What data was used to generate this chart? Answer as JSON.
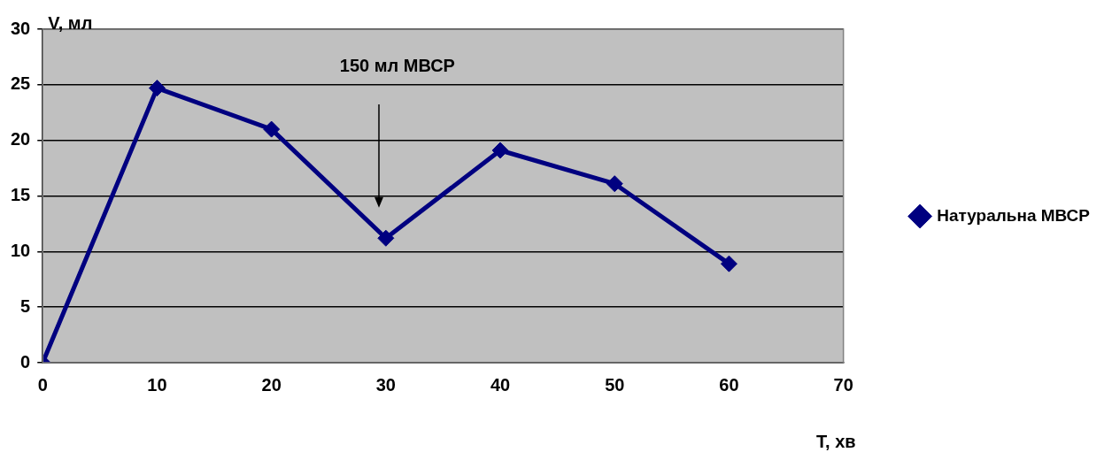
{
  "chart_data": {
    "type": "line",
    "xlabel": "T, хв",
    "ylabel": "V, мл",
    "x": [
      0,
      10,
      20,
      30,
      40,
      50,
      60
    ],
    "series": [
      {
        "name": "Натуральна МВСР",
        "color": "#000080",
        "values": [
          0,
          24.7,
          21.0,
          11.2,
          19.1,
          16.1,
          8.9
        ]
      }
    ],
    "xlim": [
      0,
      70
    ],
    "xticks": [
      0,
      10,
      20,
      30,
      40,
      50,
      60,
      70
    ],
    "ylim": [
      0,
      30
    ],
    "yticks": [
      0,
      5,
      10,
      15,
      20,
      25,
      30
    ],
    "grid": "y",
    "legend": "right",
    "marker": "diamond",
    "line_style": "solid",
    "annotations": [
      "150 мл МВСР"
    ]
  }
}
